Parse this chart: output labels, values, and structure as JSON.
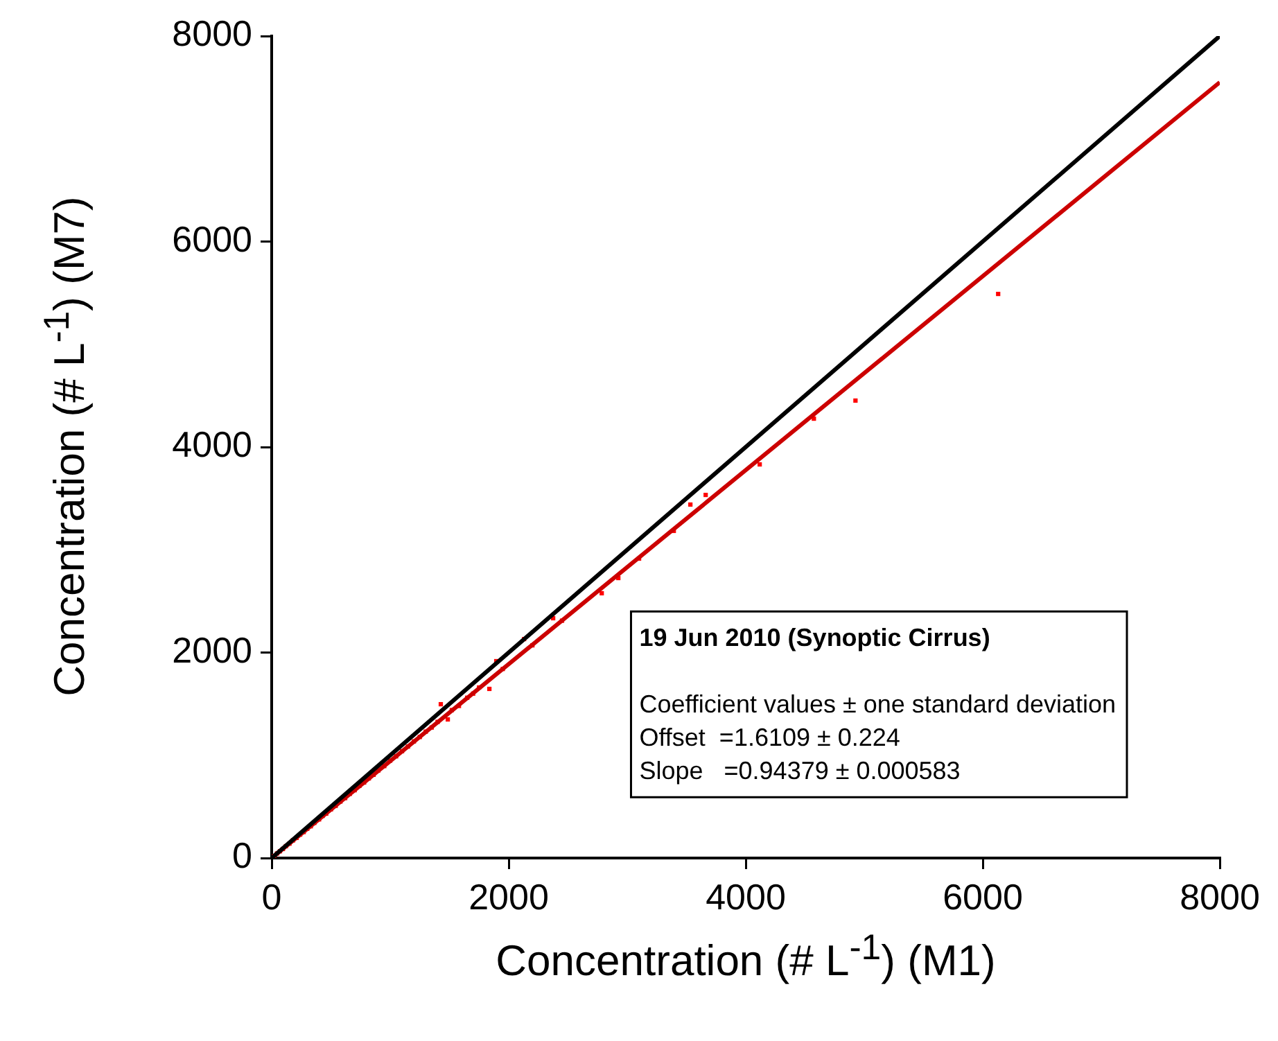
{
  "chart_data": {
    "type": "scatter",
    "xlabel": "Concentration (# L$^{-1}$) (M1)",
    "ylabel": "Concentration (# L$^{-1}$) (M7)",
    "xlim": [
      0,
      8000
    ],
    "ylim": [
      0,
      8000
    ],
    "xticks": [
      0,
      2000,
      4000,
      6000,
      8000
    ],
    "yticks": [
      0,
      2000,
      4000,
      6000,
      8000
    ],
    "grid": false,
    "legend": false,
    "marker": "square",
    "annotations": [
      "19 Jun 2010 (Synoptic Cirrus)",
      "Coefficient values ± one standard deviation",
      "Offset  =1.6109 ± 0.224",
      "Slope   =0.94379 ± 0.000583"
    ],
    "series": [
      {
        "type": "line",
        "color": "#000000",
        "marker": "none",
        "x": [
          0,
          8000
        ],
        "values": [
          0,
          8000
        ]
      },
      {
        "type": "line",
        "color": "#cc0000",
        "marker": "none",
        "x": [
          0,
          8000
        ],
        "values": [
          0,
          7550
        ]
      },
      {
        "type": "scatter",
        "color": "#ff0000",
        "x": [
          20,
          45,
          70,
          95,
          120,
          150,
          180,
          210,
          240,
          270,
          300,
          330,
          360,
          400,
          430,
          460,
          500,
          540,
          580,
          620,
          660,
          700,
          740,
          780,
          820,
          860,
          900,
          950,
          1000,
          1050,
          1100,
          1150,
          1200,
          1250,
          1300,
          1350,
          1400,
          1427,
          1486,
          1520,
          1580,
          1650,
          1700,
          1750,
          1837,
          1895,
          1950,
          2130,
          2200,
          2375,
          2450,
          2785,
          2925,
          3100,
          3393,
          3533,
          3662,
          4118,
          4575,
          4926,
          6130
        ],
        "values": [
          18,
          44,
          66,
          88,
          115,
          140,
          172,
          196,
          228,
          253,
          285,
          309,
          342,
          376,
          410,
          432,
          474,
          508,
          550,
          583,
          625,
          660,
          702,
          735,
          775,
          810,
          852,
          895,
          948,
          990,
          1040,
          1085,
          1135,
          1178,
          1230,
          1270,
          1325,
          1497,
          1349,
          1440,
          1480,
          1560,
          1600,
          1660,
          1646,
          1916,
          1840,
          2131,
          2070,
          2334,
          2310,
          2577,
          2725,
          2914,
          3184,
          3440,
          3534,
          3831,
          4276,
          4452,
          5490
        ]
      }
    ]
  }
}
